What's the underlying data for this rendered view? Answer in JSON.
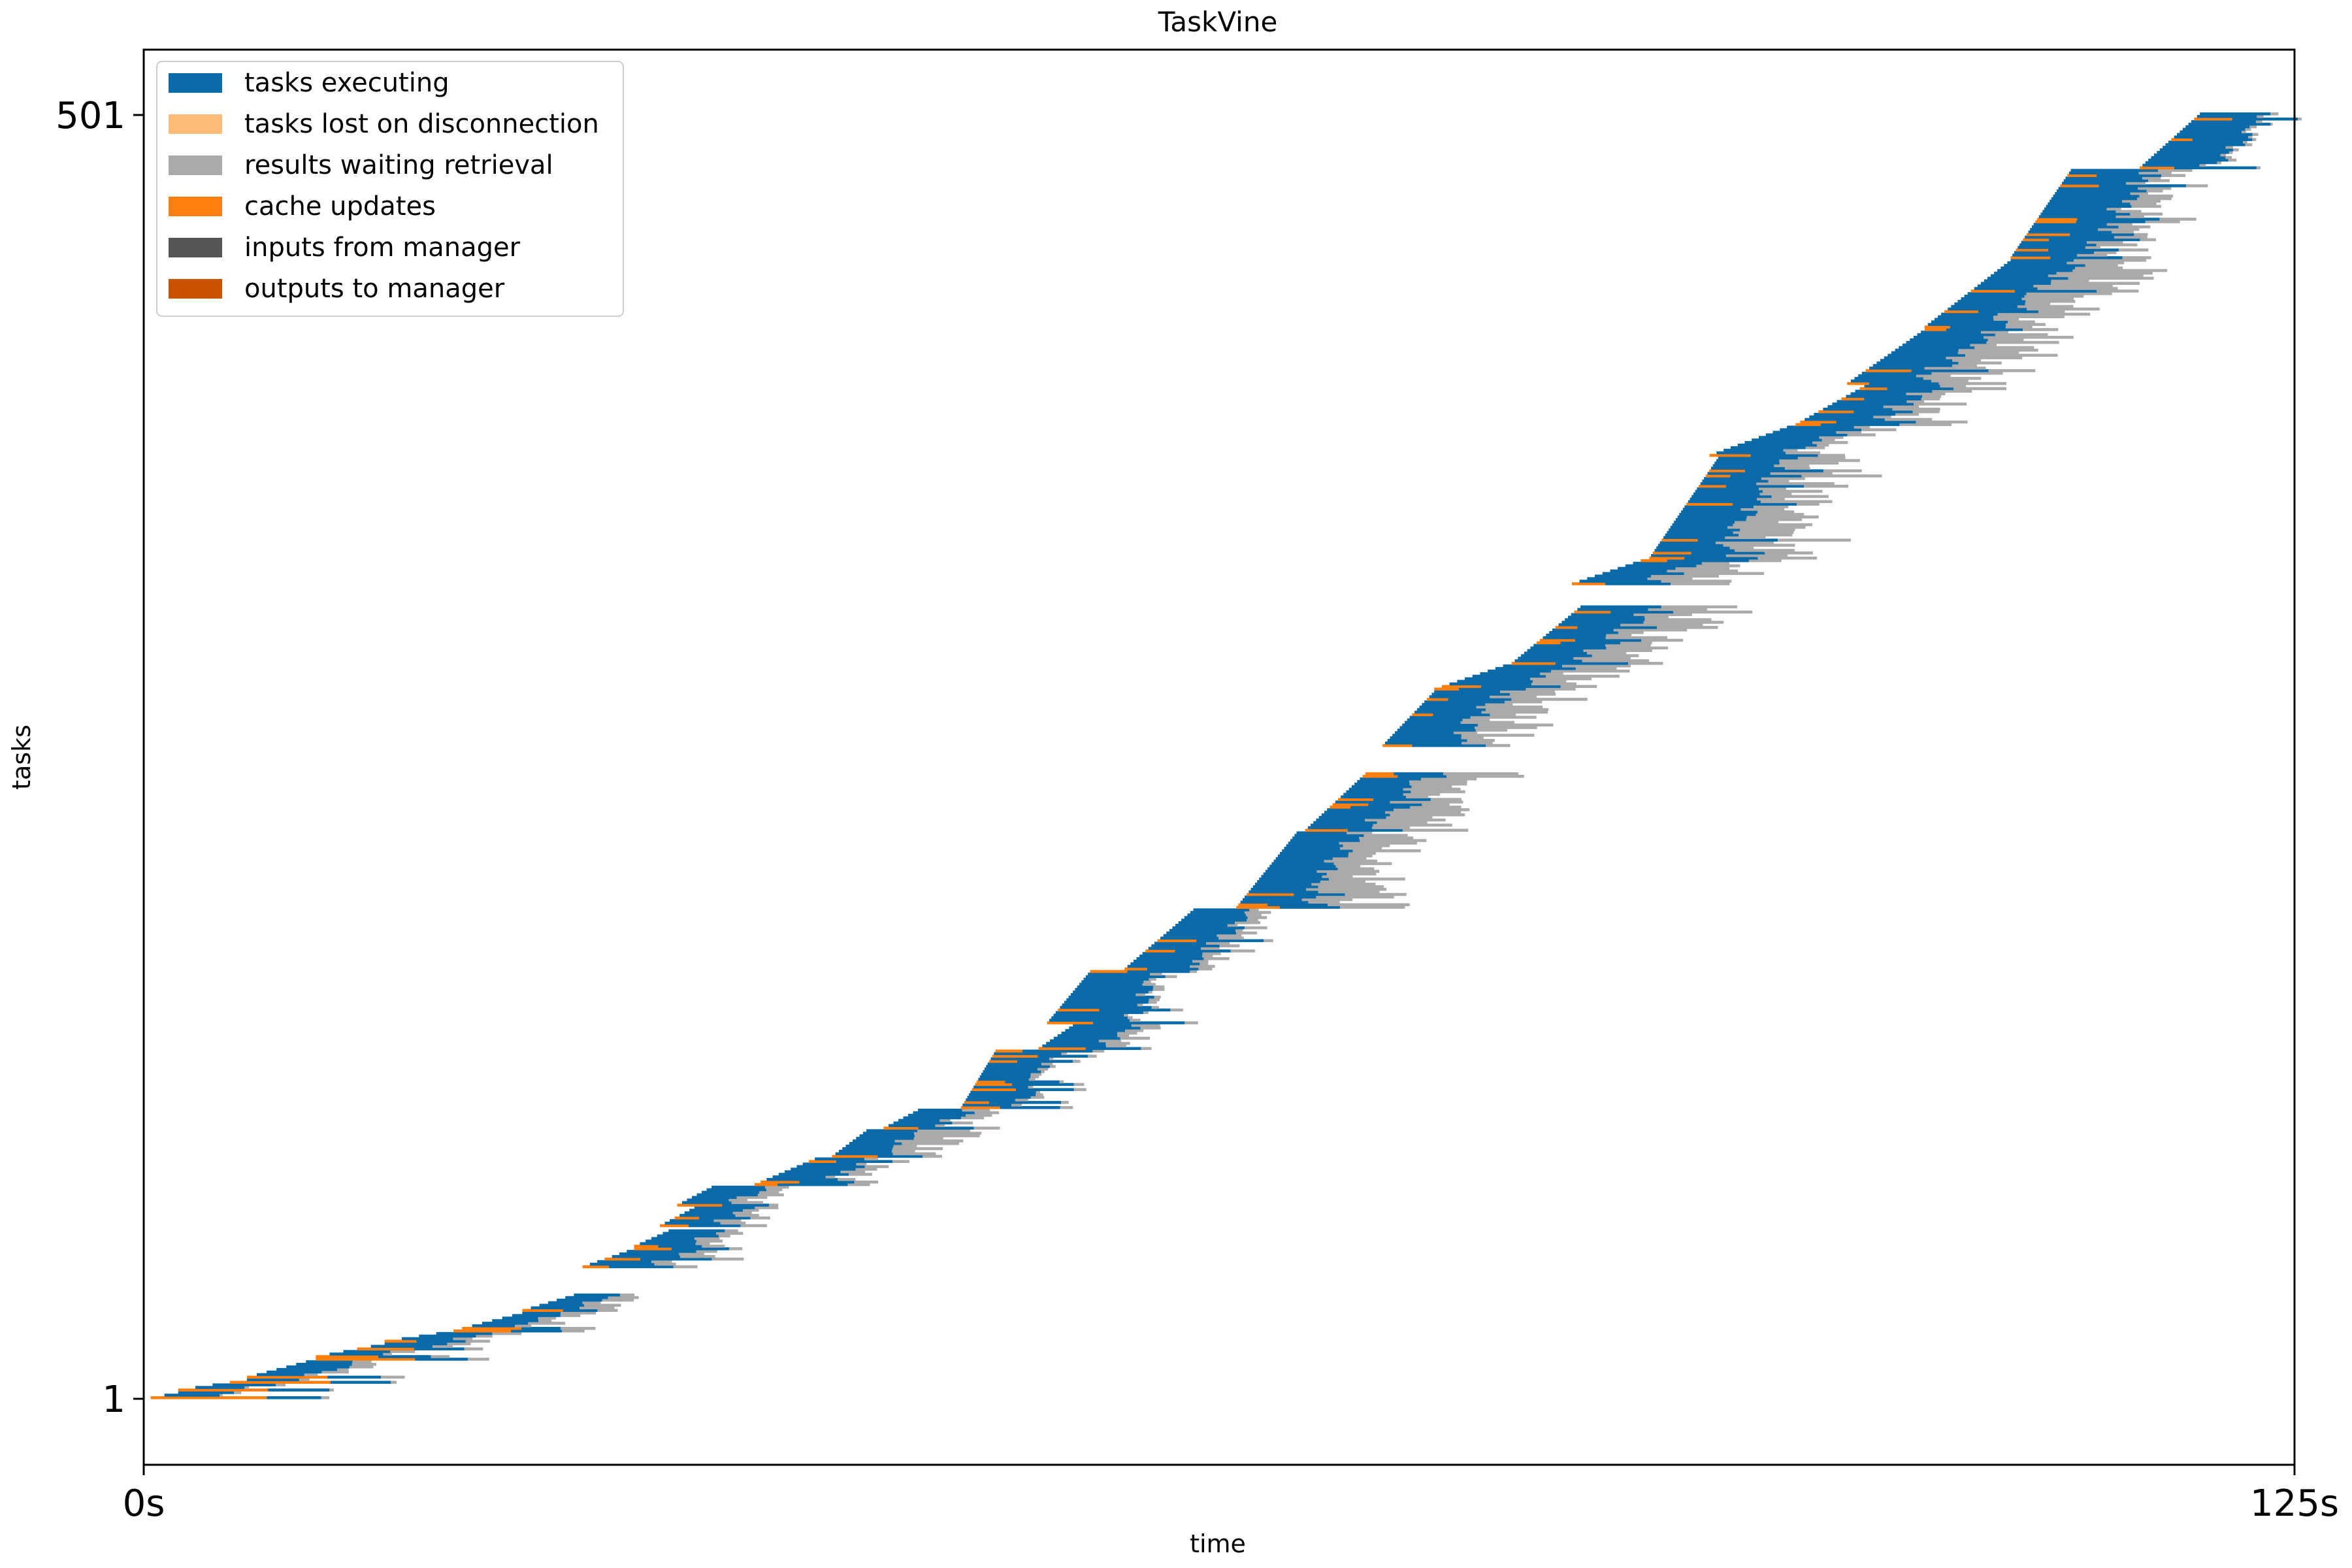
{
  "chart_data": {
    "type": "gantt",
    "title": "TaskVine",
    "xlabel": "time",
    "ylabel": "tasks",
    "x_unit": "s",
    "xlim": [
      0,
      125
    ],
    "ylim": [
      1,
      501
    ],
    "x_ticks": [
      "0s",
      "125s"
    ],
    "y_ticks": [
      "1",
      "501"
    ],
    "grid": false,
    "legend_position": "top-left",
    "legend": [
      {
        "name": "tasks executing",
        "color": "#0b6aa8"
      },
      {
        "name": "tasks lost on disconnection",
        "color": "#ffbb78"
      },
      {
        "name": "results waiting retrieval",
        "color": "#aaaaaa"
      },
      {
        "name": "cache updates",
        "color": "#ff7f0e"
      },
      {
        "name": "inputs from manager",
        "color": "#555555"
      },
      {
        "name": "outputs to manager",
        "color": "#c85200"
      }
    ],
    "task_groups": [
      {
        "tasks": [
          1,
          4
        ],
        "dispatch": [
          0.4,
          2.0
        ],
        "cache": 8,
        "exec": 3.0,
        "wait": 0.3
      },
      {
        "tasks": [
          4,
          9
        ],
        "dispatch": [
          2.0,
          6.0
        ],
        "cache": 6,
        "exec": 3.2,
        "wait": 0.4
      },
      {
        "tasks": [
          9,
          17
        ],
        "dispatch": [
          6.0,
          10.0
        ],
        "cache": 5,
        "exec": 3.2,
        "wait": 1.0
      },
      {
        "tasks": [
          17,
          23
        ],
        "dispatch": [
          10.0,
          14.0
        ],
        "cache": 4,
        "exec": 3.2,
        "wait": 1.2
      },
      {
        "tasks": [
          23,
          28
        ],
        "dispatch": [
          14.0,
          18.0
        ],
        "cache": 3,
        "exec": 2.8,
        "wait": 1.5
      },
      {
        "tasks": [
          28,
          35
        ],
        "dispatch": [
          18.5,
          22.0
        ],
        "cache": 3,
        "exec": 2.5,
        "wait": 1.5
      },
      {
        "tasks": [
          35,
          42
        ],
        "dispatch": [
          22.0,
          25.0
        ],
        "cache": 2.5,
        "exec": 2.5,
        "wait": 1.5
      },
      {
        "tasks": [
          52,
          60
        ],
        "dispatch": [
          25.5,
          28.5
        ],
        "cache": 2,
        "exec": 3.5,
        "wait": 1.5
      },
      {
        "tasks": [
          60,
          67
        ],
        "dispatch": [
          28.5,
          30.5
        ],
        "cache": 2,
        "exec": 3.0,
        "wait": 1.0
      },
      {
        "tasks": [
          68,
          76
        ],
        "dispatch": [
          30.0,
          32.0
        ],
        "cache": 2,
        "exec": 3.0,
        "wait": 1.2
      },
      {
        "tasks": [
          76,
          84
        ],
        "dispatch": [
          31.0,
          33.0
        ],
        "cache": 2,
        "exec": 3.0,
        "wait": 1.2
      },
      {
        "tasks": [
          84,
          95
        ],
        "dispatch": [
          35.5,
          39.0
        ],
        "cache": 2,
        "exec": 3.5,
        "wait": 1.0
      },
      {
        "tasks": [
          95,
          106
        ],
        "dispatch": [
          40.0,
          42.0
        ],
        "cache": 2,
        "exec": 3.0,
        "wait": 2.5
      },
      {
        "tasks": [
          106,
          114
        ],
        "dispatch": [
          43.0,
          45.0
        ],
        "cache": 2,
        "exec": 3.0,
        "wait": 1.2
      },
      {
        "tasks": [
          114,
          137
        ],
        "dispatch": [
          47.5,
          49.5
        ],
        "cache": 2,
        "exec": 3.5,
        "wait": 0.5
      },
      {
        "tasks": [
          137,
          147
        ],
        "dispatch": [
          52.0,
          54.0
        ],
        "cache": 2,
        "exec": 3.5,
        "wait": 1.2
      },
      {
        "tasks": [
          147,
          168
        ],
        "dispatch": [
          52.5,
          55.0
        ],
        "cache": 2,
        "exec": 4.5,
        "wait": 0.5
      },
      {
        "tasks": [
          168,
          192
        ],
        "dispatch": [
          57.0,
          61.0
        ],
        "cache": 2,
        "exec": 3.5,
        "wait": 1.0
      },
      {
        "tasks": [
          192,
          222
        ],
        "dispatch": [
          63.5,
          67.0
        ],
        "cache": 2,
        "exec": 3.5,
        "wait": 3.0
      },
      {
        "tasks": [
          222,
          245
        ],
        "dispatch": [
          67.5,
          71.0
        ],
        "cache": 2,
        "exec": 3.5,
        "wait": 3.0
      },
      {
        "tasks": [
          255,
          277
        ],
        "dispatch": [
          72.0,
          75.0
        ],
        "cache": 2,
        "exec": 4.0,
        "wait": 3.0
      },
      {
        "tasks": [
          277,
          287
        ],
        "dispatch": [
          75.0,
          79.0
        ],
        "cache": 2,
        "exec": 4.0,
        "wait": 3.0
      },
      {
        "tasks": [
          287,
          310
        ],
        "dispatch": [
          79.5,
          83.5
        ],
        "cache": 2,
        "exec": 4.0,
        "wait": 3.0
      },
      {
        "tasks": [
          318,
          328
        ],
        "dispatch": [
          83.0,
          87.0
        ],
        "cache": 2,
        "exec": 4.0,
        "wait": 3.0
      },
      {
        "tasks": [
          328,
          368
        ],
        "dispatch": [
          87.5,
          91.5
        ],
        "cache": 2,
        "exec": 4.0,
        "wait": 3.0
      },
      {
        "tasks": [
          368,
          380
        ],
        "dispatch": [
          91.0,
          95.5
        ],
        "cache": 2,
        "exec": 4.0,
        "wait": 1.5
      },
      {
        "tasks": [
          380,
          396
        ],
        "dispatch": [
          96.0,
          100.0
        ],
        "cache": 2,
        "exec": 4.0,
        "wait": 2.0
      },
      {
        "tasks": [
          396,
          418
        ],
        "dispatch": [
          99.0,
          103.5
        ],
        "cache": 2,
        "exec": 4.0,
        "wait": 3.5
      },
      {
        "tasks": [
          418,
          445
        ],
        "dispatch": [
          103.5,
          108.5
        ],
        "cache": 2,
        "exec": 4.0,
        "wait": 3.5
      },
      {
        "tasks": [
          445,
          480
        ],
        "dispatch": [
          108.5,
          112.0
        ],
        "cache": 2,
        "exec": 4.5,
        "wait": 1.5
      },
      {
        "tasks": [
          480,
          502
        ],
        "dispatch": [
          116.0,
          119.5
        ],
        "cache": 2,
        "exec": 4.0,
        "wait": 0.3
      }
    ]
  }
}
